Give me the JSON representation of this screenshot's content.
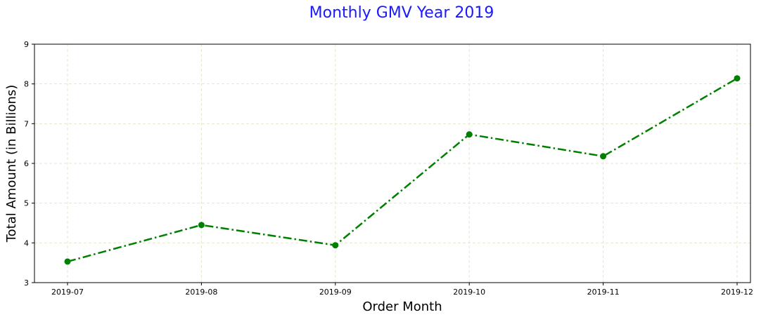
{
  "chart_data": {
    "type": "line",
    "title": "Monthly GMV Year 2019",
    "title_color": "#1a1aff",
    "xlabel": "Order Month",
    "ylabel": "Total Amount (in Billions)",
    "categories": [
      "2019-07",
      "2019-08",
      "2019-09",
      "2019-10",
      "2019-11",
      "2019-12"
    ],
    "series": [
      {
        "values": [
          3.53,
          4.45,
          3.94,
          6.73,
          6.18,
          8.14
        ],
        "color": "#008000",
        "line_style": "dash-dot",
        "marker": "circle"
      }
    ],
    "ylim": [
      3,
      9
    ],
    "yticks": [
      3,
      4,
      5,
      6,
      7,
      8,
      9
    ],
    "ytick_labels": [
      "3",
      "4",
      "5",
      "6",
      "7",
      "8",
      "9"
    ],
    "grid": true,
    "grid_color": "#e6e6cc",
    "legend": false
  }
}
